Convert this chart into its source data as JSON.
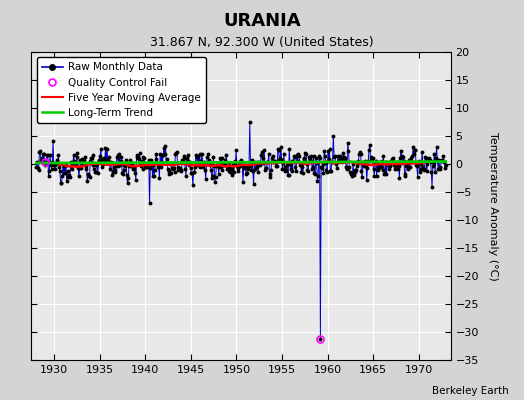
{
  "title": "URANIA",
  "subtitle": "31.867 N, 92.300 W (United States)",
  "watermark": "Berkeley Earth",
  "ylabel_right": "Temperature Anomaly (°C)",
  "xlim": [
    1927.5,
    1973.5
  ],
  "ylim": [
    -35,
    20
  ],
  "yticks": [
    -35,
    -30,
    -25,
    -20,
    -15,
    -10,
    -5,
    0,
    5,
    10,
    15,
    20
  ],
  "xticks": [
    1930,
    1935,
    1940,
    1945,
    1950,
    1955,
    1960,
    1965,
    1970
  ],
  "bg_color": "#d4d4d4",
  "plot_bg_color": "#e8e8e8",
  "grid_color": "white",
  "raw_line_color": "#0000cc",
  "raw_marker_color": "black",
  "qc_fail_color": "#ff00ff",
  "moving_avg_color": "red",
  "trend_color": "#00cc00",
  "start_year": 1928,
  "end_year": 1972,
  "qc_fail_points": [
    [
      1929.0,
      0.3
    ],
    [
      1959.17,
      -31.2
    ]
  ],
  "trend_slope": 0.006,
  "trend_intercept": 0.3
}
